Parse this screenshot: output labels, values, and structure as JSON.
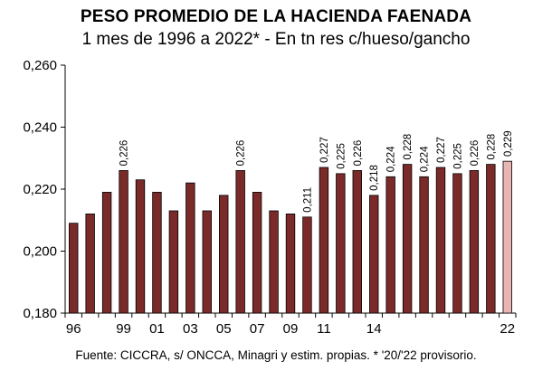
{
  "chart_data": {
    "type": "bar",
    "title": "PESO PROMEDIO DE LA HACIENDA FAENADA",
    "subtitle": "1 mes de 1996 a 2022* - En tn res c/hueso/gancho",
    "source": "Fuente: CICCRA, s/ ONCCA, Minagri y estim. propias. * '20/'22 provisorio.",
    "ylim": [
      0.18,
      0.26
    ],
    "yticks": [
      "0,180",
      "0,200",
      "0,220",
      "0,240",
      "0,260"
    ],
    "yticks_values": [
      0.18,
      0.2,
      0.22,
      0.24,
      0.26
    ],
    "grid": false,
    "categories": [
      "1996",
      "1997",
      "1998",
      "1999",
      "2000",
      "2001",
      "2002",
      "2003",
      "2004",
      "2005",
      "2006",
      "2007",
      "2008",
      "2009",
      "2010",
      "2011",
      "2012",
      "2013",
      "2014",
      "2015",
      "2016",
      "2017",
      "2018",
      "2019",
      "2020",
      "2021",
      "2022"
    ],
    "xtick_labels": [
      "96",
      "",
      "",
      "99",
      "",
      "01",
      "",
      "03",
      "",
      "05",
      "",
      "07",
      "",
      "09",
      "",
      "11",
      "",
      "",
      "14",
      "",
      "",
      "",
      "",
      "",
      "",
      "",
      "22"
    ],
    "values": [
      0.209,
      0.212,
      0.219,
      0.226,
      0.223,
      0.219,
      0.213,
      0.222,
      0.213,
      0.218,
      0.226,
      0.219,
      0.213,
      0.212,
      0.211,
      0.227,
      0.225,
      0.226,
      0.218,
      0.224,
      0.228,
      0.224,
      0.227,
      0.225,
      0.226,
      0.228,
      0.229
    ],
    "data_labels": [
      "",
      "",
      "",
      "0,226",
      "",
      "",
      "",
      "",
      "",
      "",
      "0,226",
      "",
      "",
      "",
      "0,211",
      "0,227",
      "0,225",
      "0,226",
      "0,218",
      "0,224",
      "0,228",
      "0,224",
      "0,227",
      "0,225",
      "0,226",
      "0,228",
      "0,229"
    ],
    "provisional_from_index": 26,
    "colors": {
      "bar": "#7b2a2a",
      "bar_provisional": "#e8b4b4",
      "stroke": "#000000"
    }
  }
}
